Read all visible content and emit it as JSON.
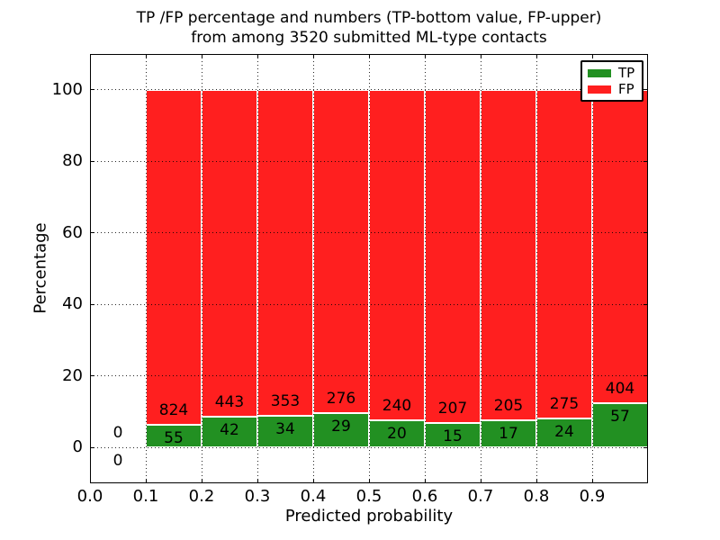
{
  "figure": {
    "title_line1": "TP /FP percentage and numbers (TP-bottom value, FP-upper)",
    "title_line2": "from among 3520 submitted ML-type contacts",
    "background": "#ffffff"
  },
  "axes": {
    "xlabel": "Predicted probability",
    "ylabel": "Percentage",
    "xlim": [
      0.0,
      1.0
    ],
    "ylim": [
      -10,
      110
    ],
    "xtick_values": [
      0.0,
      0.1,
      0.2,
      0.3,
      0.4,
      0.5,
      0.6,
      0.7,
      0.8,
      0.9
    ],
    "xtick_labels": [
      "0.0",
      "0.1",
      "0.2",
      "0.3",
      "0.4",
      "0.5",
      "0.6",
      "0.7",
      "0.8",
      "0.9"
    ],
    "ytick_values": [
      0,
      20,
      40,
      60,
      80,
      100
    ],
    "ytick_labels": [
      "0",
      "20",
      "40",
      "60",
      "80",
      "100"
    ],
    "grid_style": "dotted"
  },
  "legend": {
    "position": "upper right",
    "items": [
      {
        "id": "tp",
        "label": "TP",
        "color": "#229022"
      },
      {
        "id": "fp",
        "label": "FP",
        "color": "#ff1f1f"
      }
    ]
  },
  "chart_data": {
    "type": "bar",
    "mode": "stacked-percentage",
    "title": "TP /FP percentage and numbers (TP-bottom value, FP-upper) from among 3520 submitted ML-type contacts",
    "xlabel": "Predicted probability",
    "ylabel": "Percentage",
    "xlim": [
      0.0,
      1.0
    ],
    "ylim": [
      -10,
      110
    ],
    "grid": true,
    "legend_position": "upper right",
    "total_contacts": 3520,
    "bin_width": 0.1,
    "bin_edges": [
      0.0,
      0.1,
      0.2,
      0.3,
      0.4,
      0.5,
      0.6,
      0.7,
      0.8,
      0.9,
      1.0
    ],
    "categories": [
      "0.0-0.1",
      "0.1-0.2",
      "0.2-0.3",
      "0.3-0.4",
      "0.4-0.5",
      "0.5-0.6",
      "0.6-0.7",
      "0.7-0.8",
      "0.8-0.9",
      "0.9-1.0"
    ],
    "series": [
      {
        "name": "TP",
        "color": "#229022",
        "counts": [
          0,
          55,
          42,
          34,
          29,
          20,
          15,
          17,
          24,
          57
        ]
      },
      {
        "name": "FP",
        "color": "#ff1f1f",
        "counts": [
          0,
          824,
          443,
          353,
          276,
          240,
          207,
          205,
          275,
          404
        ]
      }
    ],
    "tp_percent": [
      0,
      6.26,
      8.66,
      8.79,
      9.51,
      7.69,
      6.76,
      7.66,
      8.03,
      12.36
    ],
    "fp_percent": [
      0,
      93.74,
      91.34,
      91.21,
      90.49,
      92.31,
      93.24,
      92.34,
      91.97,
      87.64
    ]
  }
}
